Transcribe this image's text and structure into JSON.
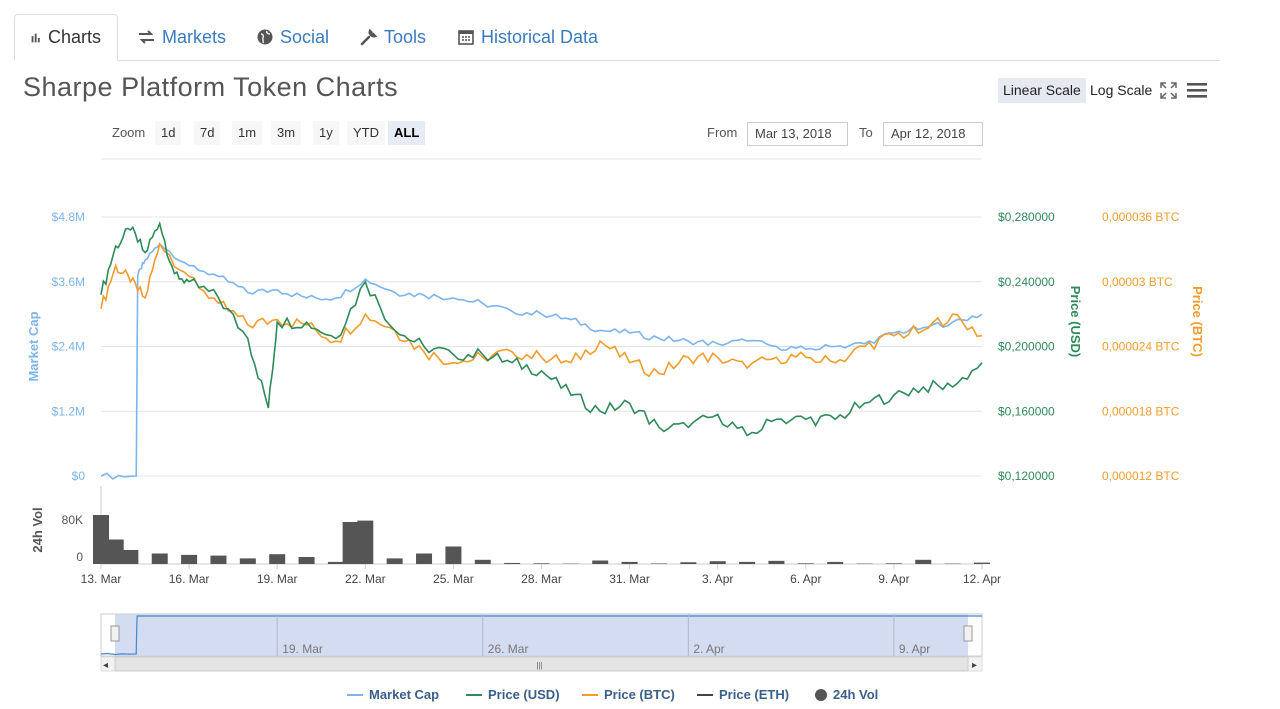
{
  "tabs": [
    {
      "label": "Charts",
      "icon": "bar-chart-icon"
    },
    {
      "label": "Markets",
      "icon": "exchange-icon"
    },
    {
      "label": "Social",
      "icon": "globe-icon"
    },
    {
      "label": "Tools",
      "icon": "wrench-icon"
    },
    {
      "label": "Historical Data",
      "icon": "calendar-icon"
    }
  ],
  "page_title": "Sharpe Platform Token Charts",
  "scale": {
    "linear": "Linear Scale",
    "log": "Log Scale",
    "active": "linear"
  },
  "zoom": {
    "label": "Zoom",
    "buttons": [
      "1d",
      "7d",
      "1m",
      "3m",
      "1y",
      "YTD",
      "ALL"
    ],
    "active": "ALL"
  },
  "range": {
    "from_label": "From",
    "from": "Mar 13, 2018",
    "to_label": "To",
    "to": "Apr 12, 2018"
  },
  "colors": {
    "market_cap": "#7cb5ec",
    "usd": "#2f8a5a",
    "btc": "#f39c2d",
    "eth": "#434348",
    "vol": "#555555",
    "axis_left": "#7cb5ec",
    "nav_fill": "#c9d3ee"
  },
  "chart_data": {
    "type": "line",
    "x_ticks": [
      "13. Mar",
      "16. Mar",
      "19. Mar",
      "22. Mar",
      "25. Mar",
      "28. Mar",
      "31. Mar",
      "3. Apr",
      "6. Apr",
      "9. Apr",
      "12. Apr"
    ],
    "x_range_days": [
      0,
      30
    ],
    "axes": {
      "market_cap": {
        "label": "Market Cap",
        "ticks": [
          "$0",
          "$1.2M",
          "$2.4M",
          "$3.6M",
          "$4.8M"
        ],
        "range": [
          0,
          4800000
        ]
      },
      "usd": {
        "label": "Price (USD)",
        "ticks": [
          "$0,120000",
          "$0,160000",
          "$0,200000",
          "$0,240000",
          "$0,280000"
        ],
        "range": [
          0.12,
          0.28
        ]
      },
      "btc": {
        "label": "Price (BTC)",
        "ticks": [
          "0,000012 BTC",
          "0,000018 BTC",
          "0,000024 BTC",
          "0,00003 BTC",
          "0,000036 BTC"
        ],
        "range": [
          1.2e-05,
          3.6e-05
        ]
      },
      "vol": {
        "label": "24h Vol",
        "ticks": [
          "0",
          "80K"
        ],
        "range": [
          0,
          80000
        ]
      }
    },
    "series": [
      {
        "name": "Market Cap",
        "key": "market_cap",
        "points": [
          [
            0,
            0
          ],
          [
            1.2,
            0
          ],
          [
            1.25,
            3700000
          ],
          [
            1.5,
            4000000
          ],
          [
            2,
            4300000
          ],
          [
            3,
            3900000
          ],
          [
            4,
            3700000
          ],
          [
            5,
            3400000
          ],
          [
            6,
            3450000
          ],
          [
            7,
            3300000
          ],
          [
            8,
            3300000
          ],
          [
            9,
            3650000
          ],
          [
            10,
            3400000
          ],
          [
            11,
            3350000
          ],
          [
            12,
            3300000
          ],
          [
            13,
            3200000
          ],
          [
            14,
            3050000
          ],
          [
            15,
            3000000
          ],
          [
            16,
            2900000
          ],
          [
            17,
            2700000
          ],
          [
            18,
            2650000
          ],
          [
            19,
            2550000
          ],
          [
            20,
            2500000
          ],
          [
            21,
            2450000
          ],
          [
            22,
            2500000
          ],
          [
            23,
            2400000
          ],
          [
            24,
            2350000
          ],
          [
            25,
            2400000
          ],
          [
            26,
            2450000
          ],
          [
            27,
            2650000
          ],
          [
            28,
            2750000
          ],
          [
            29,
            2850000
          ],
          [
            30,
            3000000
          ]
        ]
      },
      {
        "name": "Price (USD)",
        "key": "usd",
        "points": [
          [
            0,
            0.232
          ],
          [
            0.5,
            0.262
          ],
          [
            1,
            0.272
          ],
          [
            1.5,
            0.258
          ],
          [
            2,
            0.276
          ],
          [
            2.5,
            0.245
          ],
          [
            3,
            0.24
          ],
          [
            4,
            0.23
          ],
          [
            5,
            0.205
          ],
          [
            5.7,
            0.162
          ],
          [
            6,
            0.215
          ],
          [
            7,
            0.215
          ],
          [
            8,
            0.205
          ],
          [
            9,
            0.24
          ],
          [
            10,
            0.21
          ],
          [
            11,
            0.2
          ],
          [
            12,
            0.195
          ],
          [
            13,
            0.195
          ],
          [
            14,
            0.19
          ],
          [
            15,
            0.185
          ],
          [
            16,
            0.17
          ],
          [
            17,
            0.16
          ],
          [
            18,
            0.165
          ],
          [
            19,
            0.15
          ],
          [
            20,
            0.15
          ],
          [
            21,
            0.158
          ],
          [
            22,
            0.145
          ],
          [
            23,
            0.155
          ],
          [
            24,
            0.155
          ],
          [
            25,
            0.155
          ],
          [
            26,
            0.165
          ],
          [
            27,
            0.17
          ],
          [
            28,
            0.175
          ],
          [
            29,
            0.175
          ],
          [
            30,
            0.19
          ]
        ]
      },
      {
        "name": "Price (BTC)",
        "key": "btc",
        "points": [
          [
            0,
            2.75e-05
          ],
          [
            0.5,
            3.15e-05
          ],
          [
            1,
            3e-05
          ],
          [
            1.5,
            2.85e-05
          ],
          [
            2,
            3.35e-05
          ],
          [
            3,
            3.05e-05
          ],
          [
            4,
            2.8e-05
          ],
          [
            5,
            2.6e-05
          ],
          [
            6,
            2.65e-05
          ],
          [
            7,
            2.6e-05
          ],
          [
            8,
            2.45e-05
          ],
          [
            9,
            2.7e-05
          ],
          [
            10,
            2.55e-05
          ],
          [
            11,
            2.35e-05
          ],
          [
            12,
            2.25e-05
          ],
          [
            13,
            2.3e-05
          ],
          [
            14,
            2.35e-05
          ],
          [
            15,
            2.3e-05
          ],
          [
            16,
            2.25e-05
          ],
          [
            17,
            2.45e-05
          ],
          [
            18,
            2.25e-05
          ],
          [
            19,
            2.15e-05
          ],
          [
            20,
            2.3e-05
          ],
          [
            21,
            2.3e-05
          ],
          [
            22,
            2.2e-05
          ],
          [
            23,
            2.3e-05
          ],
          [
            24,
            2.3e-05
          ],
          [
            25,
            2.25e-05
          ],
          [
            26,
            2.4e-05
          ],
          [
            27,
            2.5e-05
          ],
          [
            28,
            2.55e-05
          ],
          [
            29,
            2.7e-05
          ],
          [
            30,
            2.5e-05
          ]
        ]
      },
      {
        "name": "Price (ETH)",
        "key": "eth",
        "points": []
      }
    ],
    "volume": {
      "name": "24h Vol",
      "bars": [
        [
          0,
          70000
        ],
        [
          0.5,
          35000
        ],
        [
          1,
          20000
        ],
        [
          2,
          15000
        ],
        [
          3,
          13000
        ],
        [
          4,
          12000
        ],
        [
          5,
          8000
        ],
        [
          6,
          14000
        ],
        [
          7,
          10000
        ],
        [
          8,
          3000
        ],
        [
          8.5,
          60000
        ],
        [
          9,
          62000
        ],
        [
          10,
          8000
        ],
        [
          11,
          15000
        ],
        [
          12,
          25000
        ],
        [
          13,
          6000
        ],
        [
          14,
          1500
        ],
        [
          15,
          1000
        ],
        [
          16,
          500
        ],
        [
          17,
          5000
        ],
        [
          18,
          3000
        ],
        [
          19,
          800
        ],
        [
          20,
          2500
        ],
        [
          21,
          4000
        ],
        [
          22,
          3000
        ],
        [
          23,
          4500
        ],
        [
          24,
          1000
        ],
        [
          25,
          3000
        ],
        [
          26,
          600
        ],
        [
          27,
          1000
        ],
        [
          28,
          6000
        ],
        [
          29,
          600
        ],
        [
          30,
          2000
        ]
      ]
    },
    "navigator": {
      "x_ticks": [
        "19. Mar",
        "26. Mar",
        "2. Apr",
        "9. Apr"
      ]
    },
    "legend": [
      "Market Cap",
      "Price (USD)",
      "Price (BTC)",
      "Price (ETH)",
      "24h Vol"
    ],
    "grid": true
  }
}
